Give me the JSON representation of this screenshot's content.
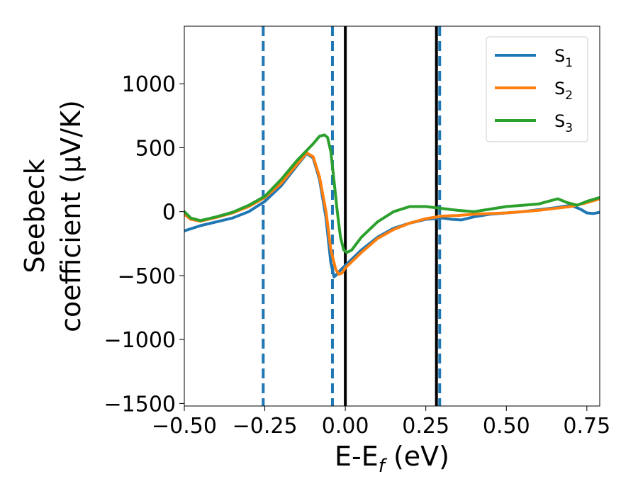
{
  "chart_data": {
    "type": "line",
    "xlabel": "E-E_f (eV)",
    "xlabel_main": "E-E",
    "xlabel_sub": "f",
    "xlabel_tail": " (eV)",
    "ylabel_line1": "Seebeck",
    "ylabel_line2": "coefficient  (μV/K)",
    "xlim": [
      -0.5,
      0.79
    ],
    "ylim": [
      -1520,
      1450
    ],
    "x_ticks": [
      -0.5,
      -0.25,
      0.0,
      0.25,
      0.5,
      0.75
    ],
    "x_tick_labels": [
      "−0.50",
      "−0.25",
      "0.00",
      "0.25",
      "0.50",
      "0.75"
    ],
    "y_ticks": [
      1000,
      500,
      0,
      -500,
      -1000,
      -1500
    ],
    "y_tick_labels": [
      "1000",
      "500",
      "0",
      "−500",
      "−1000",
      "−1500"
    ],
    "grid": false,
    "legend_position": "top-right",
    "series": [
      {
        "name": "S_1",
        "label_main": "S",
        "label_sub": "1",
        "color": "#1f77b4",
        "points": [
          [
            -0.5,
            -150
          ],
          [
            -0.45,
            -110
          ],
          [
            -0.4,
            -80
          ],
          [
            -0.35,
            -50
          ],
          [
            -0.3,
            0
          ],
          [
            -0.25,
            80
          ],
          [
            -0.2,
            200
          ],
          [
            -0.15,
            360
          ],
          [
            -0.12,
            455
          ],
          [
            -0.1,
            420
          ],
          [
            -0.08,
            250
          ],
          [
            -0.06,
            -50
          ],
          [
            -0.045,
            -400
          ],
          [
            -0.035,
            -510
          ],
          [
            -0.03,
            -500
          ],
          [
            -0.02,
            -470
          ],
          [
            0.0,
            -420
          ],
          [
            0.05,
            -300
          ],
          [
            0.1,
            -200
          ],
          [
            0.15,
            -130
          ],
          [
            0.2,
            -90
          ],
          [
            0.25,
            -60
          ],
          [
            0.3,
            -50
          ],
          [
            0.33,
            -60
          ],
          [
            0.36,
            -65
          ],
          [
            0.4,
            -40
          ],
          [
            0.45,
            -20
          ],
          [
            0.5,
            -10
          ],
          [
            0.55,
            0
          ],
          [
            0.6,
            15
          ],
          [
            0.65,
            30
          ],
          [
            0.7,
            50
          ],
          [
            0.73,
            20
          ],
          [
            0.75,
            -10
          ],
          [
            0.77,
            -15
          ],
          [
            0.79,
            -5
          ]
        ]
      },
      {
        "name": "S_2",
        "label_main": "S",
        "label_sub": "2",
        "color": "#ff7f0e",
        "points": [
          [
            -0.5,
            -20
          ],
          [
            -0.48,
            -60
          ],
          [
            -0.45,
            -75
          ],
          [
            -0.4,
            -45
          ],
          [
            -0.35,
            -10
          ],
          [
            -0.3,
            40
          ],
          [
            -0.25,
            110
          ],
          [
            -0.2,
            220
          ],
          [
            -0.15,
            370
          ],
          [
            -0.12,
            460
          ],
          [
            -0.1,
            430
          ],
          [
            -0.08,
            270
          ],
          [
            -0.06,
            0
          ],
          [
            -0.045,
            -300
          ],
          [
            -0.03,
            -450
          ],
          [
            -0.02,
            -490
          ],
          [
            -0.01,
            -480
          ],
          [
            0.0,
            -440
          ],
          [
            0.05,
            -320
          ],
          [
            0.1,
            -210
          ],
          [
            0.15,
            -140
          ],
          [
            0.2,
            -90
          ],
          [
            0.25,
            -55
          ],
          [
            0.3,
            -35
          ],
          [
            0.35,
            -30
          ],
          [
            0.4,
            -20
          ],
          [
            0.45,
            -15
          ],
          [
            0.5,
            -10
          ],
          [
            0.55,
            0
          ],
          [
            0.6,
            10
          ],
          [
            0.65,
            25
          ],
          [
            0.7,
            40
          ],
          [
            0.75,
            70
          ],
          [
            0.79,
            100
          ]
        ]
      },
      {
        "name": "S_3",
        "label_main": "S",
        "label_sub": "3",
        "color": "#2ca02c",
        "points": [
          [
            -0.5,
            0
          ],
          [
            -0.48,
            -50
          ],
          [
            -0.45,
            -70
          ],
          [
            -0.4,
            -40
          ],
          [
            -0.35,
            -5
          ],
          [
            -0.3,
            50
          ],
          [
            -0.25,
            120
          ],
          [
            -0.2,
            250
          ],
          [
            -0.15,
            400
          ],
          [
            -0.1,
            530
          ],
          [
            -0.08,
            590
          ],
          [
            -0.065,
            600
          ],
          [
            -0.055,
            580
          ],
          [
            -0.045,
            470
          ],
          [
            -0.035,
            240
          ],
          [
            -0.025,
            0
          ],
          [
            -0.015,
            -200
          ],
          [
            -0.005,
            -300
          ],
          [
            0.005,
            -320
          ],
          [
            0.02,
            -300
          ],
          [
            0.05,
            -200
          ],
          [
            0.1,
            -80
          ],
          [
            0.15,
            0
          ],
          [
            0.2,
            40
          ],
          [
            0.25,
            40
          ],
          [
            0.3,
            25
          ],
          [
            0.35,
            10
          ],
          [
            0.4,
            0
          ],
          [
            0.45,
            20
          ],
          [
            0.5,
            40
          ],
          [
            0.55,
            50
          ],
          [
            0.6,
            60
          ],
          [
            0.63,
            80
          ],
          [
            0.66,
            100
          ],
          [
            0.69,
            70
          ],
          [
            0.72,
            50
          ],
          [
            0.75,
            80
          ],
          [
            0.79,
            110
          ]
        ]
      }
    ],
    "vertical_lines": [
      {
        "x": -0.255,
        "style": "dashed",
        "color": "#1f77b4"
      },
      {
        "x": -0.04,
        "style": "dashed",
        "color": "#1f77b4"
      },
      {
        "x": 0.0,
        "style": "solid",
        "color": "#000000"
      },
      {
        "x": 0.283,
        "style": "solid",
        "color": "#000000"
      },
      {
        "x": 0.293,
        "style": "dashed",
        "color": "#1f77b4"
      }
    ]
  }
}
